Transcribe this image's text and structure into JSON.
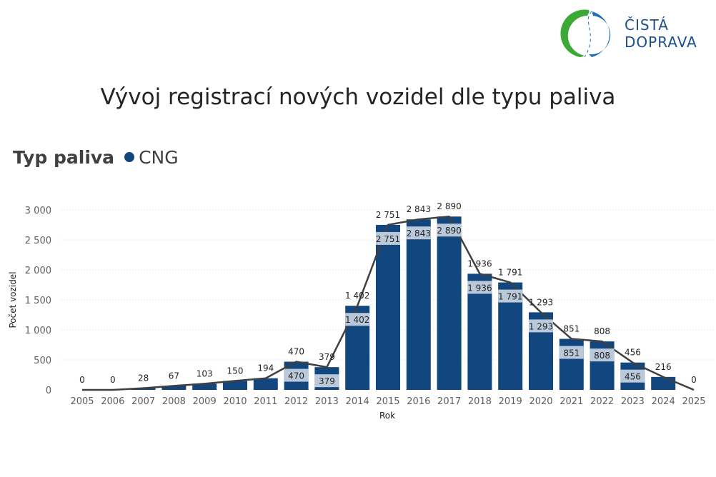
{
  "logo": {
    "line1": "ČISTÁ",
    "line2": "DOPRAVA"
  },
  "legend": {
    "title": "Typ paliva",
    "series_label": "CNG",
    "series_color": "#12467e"
  },
  "colors": {
    "bar": "#12467e",
    "label_box": "#b9c9d9",
    "line": "#404040"
  },
  "chart_data": {
    "type": "bar",
    "title": "Vývoj registrací nových vozidel dle typu paliva",
    "xlabel": "Rok",
    "ylabel": "Počet vozidel",
    "ylim": [
      0,
      3000
    ],
    "yticks": [
      "0",
      "500",
      "1 000",
      "1 500",
      "2 000",
      "2 500",
      "3 000"
    ],
    "categories": [
      "2005",
      "2006",
      "2007",
      "2008",
      "2009",
      "2010",
      "2011",
      "2012",
      "2013",
      "2014",
      "2015",
      "2016",
      "2017",
      "2018",
      "2019",
      "2020",
      "2021",
      "2022",
      "2023",
      "2024",
      "2025"
    ],
    "series": [
      {
        "name": "CNG",
        "values": [
          0,
          0,
          28,
          67,
          103,
          150,
          194,
          470,
          379,
          1402,
          2751,
          2843,
          2890,
          1936,
          1791,
          1293,
          851,
          808,
          456,
          216,
          0
        ],
        "labels": [
          "0",
          "0",
          "28",
          "67",
          "103",
          "150",
          "194",
          "470",
          "379",
          "1 402",
          "2 751",
          "2 843",
          "2 890",
          "1 936",
          "1 791",
          "1 293",
          "851",
          "808",
          "456",
          "216",
          "0"
        ]
      }
    ],
    "inner_labels": [
      "",
      "",
      "",
      "",
      "",
      "",
      "",
      "470",
      "379",
      "1 402",
      "2 751",
      "2 843",
      "2 890",
      "1 936",
      "1 791",
      "1 293",
      "851",
      "808",
      "456",
      "",
      ""
    ],
    "grid": true,
    "legend_position": "top-left"
  }
}
